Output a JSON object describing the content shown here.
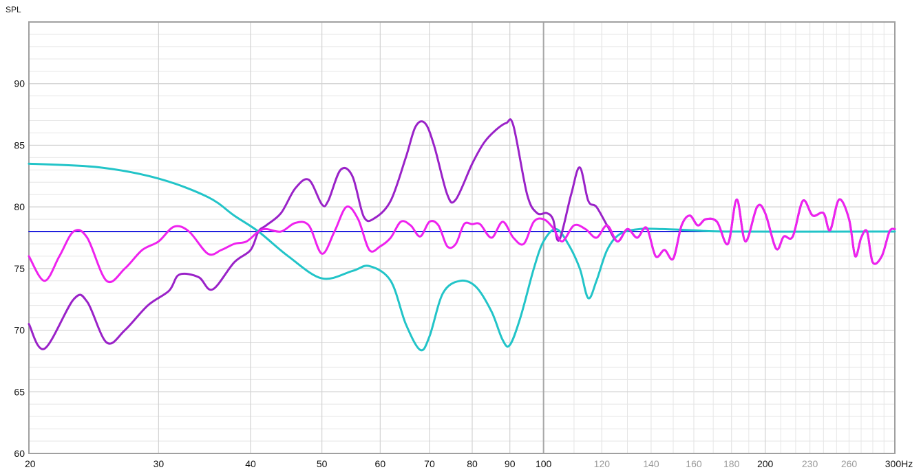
{
  "chart_data": {
    "type": "line",
    "ylabel": "SPL",
    "x_unit": "Hz",
    "x_scale": "log",
    "xlim": [
      20,
      300
    ],
    "ylim": [
      60,
      95
    ],
    "y_ticks": [
      60,
      65,
      70,
      75,
      80,
      85,
      90
    ],
    "x_ticks": [
      {
        "value": 20,
        "label": "20",
        "style": "major"
      },
      {
        "value": 30,
        "label": "30",
        "style": "major"
      },
      {
        "value": 40,
        "label": "40",
        "style": "major"
      },
      {
        "value": 50,
        "label": "50",
        "style": "major"
      },
      {
        "value": 60,
        "label": "60",
        "style": "major"
      },
      {
        "value": 70,
        "label": "70",
        "style": "major"
      },
      {
        "value": 80,
        "label": "80",
        "style": "major"
      },
      {
        "value": 90,
        "label": "90",
        "style": "major"
      },
      {
        "value": 100,
        "label": "100",
        "style": "major"
      },
      {
        "value": 120,
        "label": "120",
        "style": "dim"
      },
      {
        "value": 140,
        "label": "140",
        "style": "dim"
      },
      {
        "value": 160,
        "label": "160",
        "style": "dim"
      },
      {
        "value": 180,
        "label": "180",
        "style": "dim"
      },
      {
        "value": 200,
        "label": "200",
        "style": "major"
      },
      {
        "value": 230,
        "label": "230",
        "style": "dim"
      },
      {
        "value": 260,
        "label": "260",
        "style": "dim"
      },
      {
        "value": 300,
        "label": "300Hz",
        "style": "major"
      }
    ],
    "grid": true,
    "series": [
      {
        "color": "#2020dd",
        "points": [
          [
            20,
            78
          ],
          [
            300,
            78
          ]
        ]
      },
      {
        "color": "#22c4c8",
        "points": [
          [
            20,
            83.5
          ],
          [
            25,
            83.2
          ],
          [
            30,
            82.3
          ],
          [
            35,
            80.8
          ],
          [
            38,
            79.3
          ],
          [
            41,
            78
          ],
          [
            45,
            76
          ],
          [
            50,
            74.2
          ],
          [
            55,
            74.8
          ],
          [
            58,
            75.2
          ],
          [
            62,
            74
          ],
          [
            65,
            70.5
          ],
          [
            68,
            68.4
          ],
          [
            70,
            69.5
          ],
          [
            73,
            73
          ],
          [
            77,
            74
          ],
          [
            81,
            73.5
          ],
          [
            85,
            71.5
          ],
          [
            88,
            69.2
          ],
          [
            90,
            68.8
          ],
          [
            93,
            71
          ],
          [
            97,
            75
          ],
          [
            100,
            77.2
          ],
          [
            104,
            78.2
          ],
          [
            108,
            77
          ],
          [
            112,
            75
          ],
          [
            115,
            72.6
          ],
          [
            118,
            74
          ],
          [
            122,
            76.5
          ],
          [
            127,
            77.8
          ],
          [
            135,
            78.2
          ],
          [
            145,
            78.2
          ],
          [
            160,
            78.1
          ],
          [
            180,
            78
          ],
          [
            300,
            78
          ]
        ]
      },
      {
        "color": "#9a22c8",
        "points": [
          [
            20,
            70.5
          ],
          [
            21,
            68.5
          ],
          [
            23,
            72.5
          ],
          [
            24,
            72.3
          ],
          [
            25.5,
            69
          ],
          [
            27,
            70
          ],
          [
            29,
            72
          ],
          [
            31,
            73.2
          ],
          [
            32,
            74.5
          ],
          [
            34,
            74.3
          ],
          [
            35.5,
            73.3
          ],
          [
            38,
            75.5
          ],
          [
            40,
            76.5
          ],
          [
            41,
            78
          ],
          [
            42,
            78.5
          ],
          [
            44,
            79.5
          ],
          [
            46,
            81.5
          ],
          [
            48,
            82.2
          ],
          [
            50,
            80.2
          ],
          [
            51,
            80.5
          ],
          [
            53,
            83
          ],
          [
            55,
            82.5
          ],
          [
            57,
            79.2
          ],
          [
            59,
            79.1
          ],
          [
            62,
            80.5
          ],
          [
            65,
            84
          ],
          [
            67,
            86.5
          ],
          [
            69,
            86.8
          ],
          [
            71,
            85
          ],
          [
            74,
            81
          ],
          [
            76,
            80.6
          ],
          [
            80,
            83.5
          ],
          [
            83,
            85.2
          ],
          [
            86,
            86.2
          ],
          [
            89,
            86.8
          ],
          [
            91,
            86.6
          ],
          [
            95,
            81
          ],
          [
            98,
            79.5
          ],
          [
            101,
            79.5
          ],
          [
            103,
            79
          ],
          [
            105,
            77.3
          ],
          [
            109,
            81
          ],
          [
            112,
            83.2
          ],
          [
            115,
            80.5
          ],
          [
            118,
            80
          ],
          [
            122,
            78.5
          ],
          [
            126,
            77.2
          ],
          [
            130,
            78.2
          ],
          [
            134,
            77.5
          ],
          [
            138,
            78.3
          ],
          [
            142,
            76
          ],
          [
            146,
            76.5
          ],
          [
            150,
            75.8
          ],
          [
            154,
            78.5
          ],
          [
            158,
            79.3
          ],
          [
            162,
            78.5
          ],
          [
            166,
            79
          ],
          [
            172,
            78.8
          ],
          [
            178,
            77
          ],
          [
            183,
            80.6
          ],
          [
            188,
            77.2
          ],
          [
            195,
            80
          ],
          [
            200,
            79.5
          ],
          [
            207,
            76.6
          ],
          [
            212,
            77.6
          ],
          [
            218,
            77.6
          ],
          [
            225,
            80.5
          ],
          [
            232,
            79.3
          ],
          [
            240,
            79.5
          ],
          [
            245,
            78.1
          ],
          [
            252,
            80.6
          ],
          [
            260,
            79
          ],
          [
            265,
            76
          ],
          [
            270,
            77.5
          ],
          [
            275,
            78
          ],
          [
            280,
            75.5
          ],
          [
            288,
            76
          ],
          [
            295,
            78
          ],
          [
            300,
            78.2
          ]
        ]
      },
      {
        "color": "#ee22ee",
        "points": [
          [
            20,
            76
          ],
          [
            21,
            74
          ],
          [
            22,
            76
          ],
          [
            23,
            78
          ],
          [
            24,
            77.5
          ],
          [
            25.5,
            74
          ],
          [
            27,
            75
          ],
          [
            28.5,
            76.5
          ],
          [
            30,
            77.2
          ],
          [
            31.5,
            78.4
          ],
          [
            33,
            78
          ],
          [
            35,
            76.2
          ],
          [
            36.5,
            76.5
          ],
          [
            38,
            77
          ],
          [
            39.5,
            77.2
          ],
          [
            41,
            78
          ],
          [
            42,
            78.2
          ],
          [
            44,
            78
          ],
          [
            46,
            78.7
          ],
          [
            48,
            78.5
          ],
          [
            50,
            76.2
          ],
          [
            52,
            78
          ],
          [
            54,
            80
          ],
          [
            56,
            79
          ],
          [
            58,
            76.5
          ],
          [
            60,
            76.8
          ],
          [
            62,
            77.5
          ],
          [
            64,
            78.8
          ],
          [
            66,
            78.5
          ],
          [
            68,
            77.6
          ],
          [
            70,
            78.8
          ],
          [
            72,
            78.5
          ],
          [
            74,
            76.8
          ],
          [
            76,
            77
          ],
          [
            78,
            78.6
          ],
          [
            80,
            78.6
          ],
          [
            82,
            78.6
          ],
          [
            85,
            77.5
          ],
          [
            88,
            78.8
          ],
          [
            91,
            77.5
          ],
          [
            94,
            77
          ],
          [
            97,
            78.8
          ],
          [
            100,
            79
          ],
          [
            103,
            78.3
          ],
          [
            106,
            77.2
          ],
          [
            110,
            78.5
          ],
          [
            114,
            78.2
          ],
          [
            118,
            77.5
          ],
          [
            122,
            78.5
          ],
          [
            126,
            77.2
          ],
          [
            130,
            78.2
          ],
          [
            134,
            77.5
          ],
          [
            138,
            78.3
          ],
          [
            142,
            76
          ],
          [
            146,
            76.5
          ],
          [
            150,
            75.8
          ],
          [
            154,
            78.5
          ],
          [
            158,
            79.3
          ],
          [
            162,
            78.5
          ],
          [
            166,
            79
          ],
          [
            172,
            78.8
          ],
          [
            178,
            77
          ],
          [
            183,
            80.6
          ],
          [
            188,
            77.2
          ],
          [
            195,
            80
          ],
          [
            200,
            79.5
          ],
          [
            207,
            76.6
          ],
          [
            212,
            77.6
          ],
          [
            218,
            77.6
          ],
          [
            225,
            80.5
          ],
          [
            232,
            79.3
          ],
          [
            240,
            79.5
          ],
          [
            245,
            78.1
          ],
          [
            252,
            80.6
          ],
          [
            260,
            79
          ],
          [
            265,
            76
          ],
          [
            270,
            77.5
          ],
          [
            275,
            78
          ],
          [
            280,
            75.5
          ],
          [
            288,
            76
          ],
          [
            295,
            78
          ],
          [
            300,
            78.2
          ]
        ]
      }
    ]
  }
}
